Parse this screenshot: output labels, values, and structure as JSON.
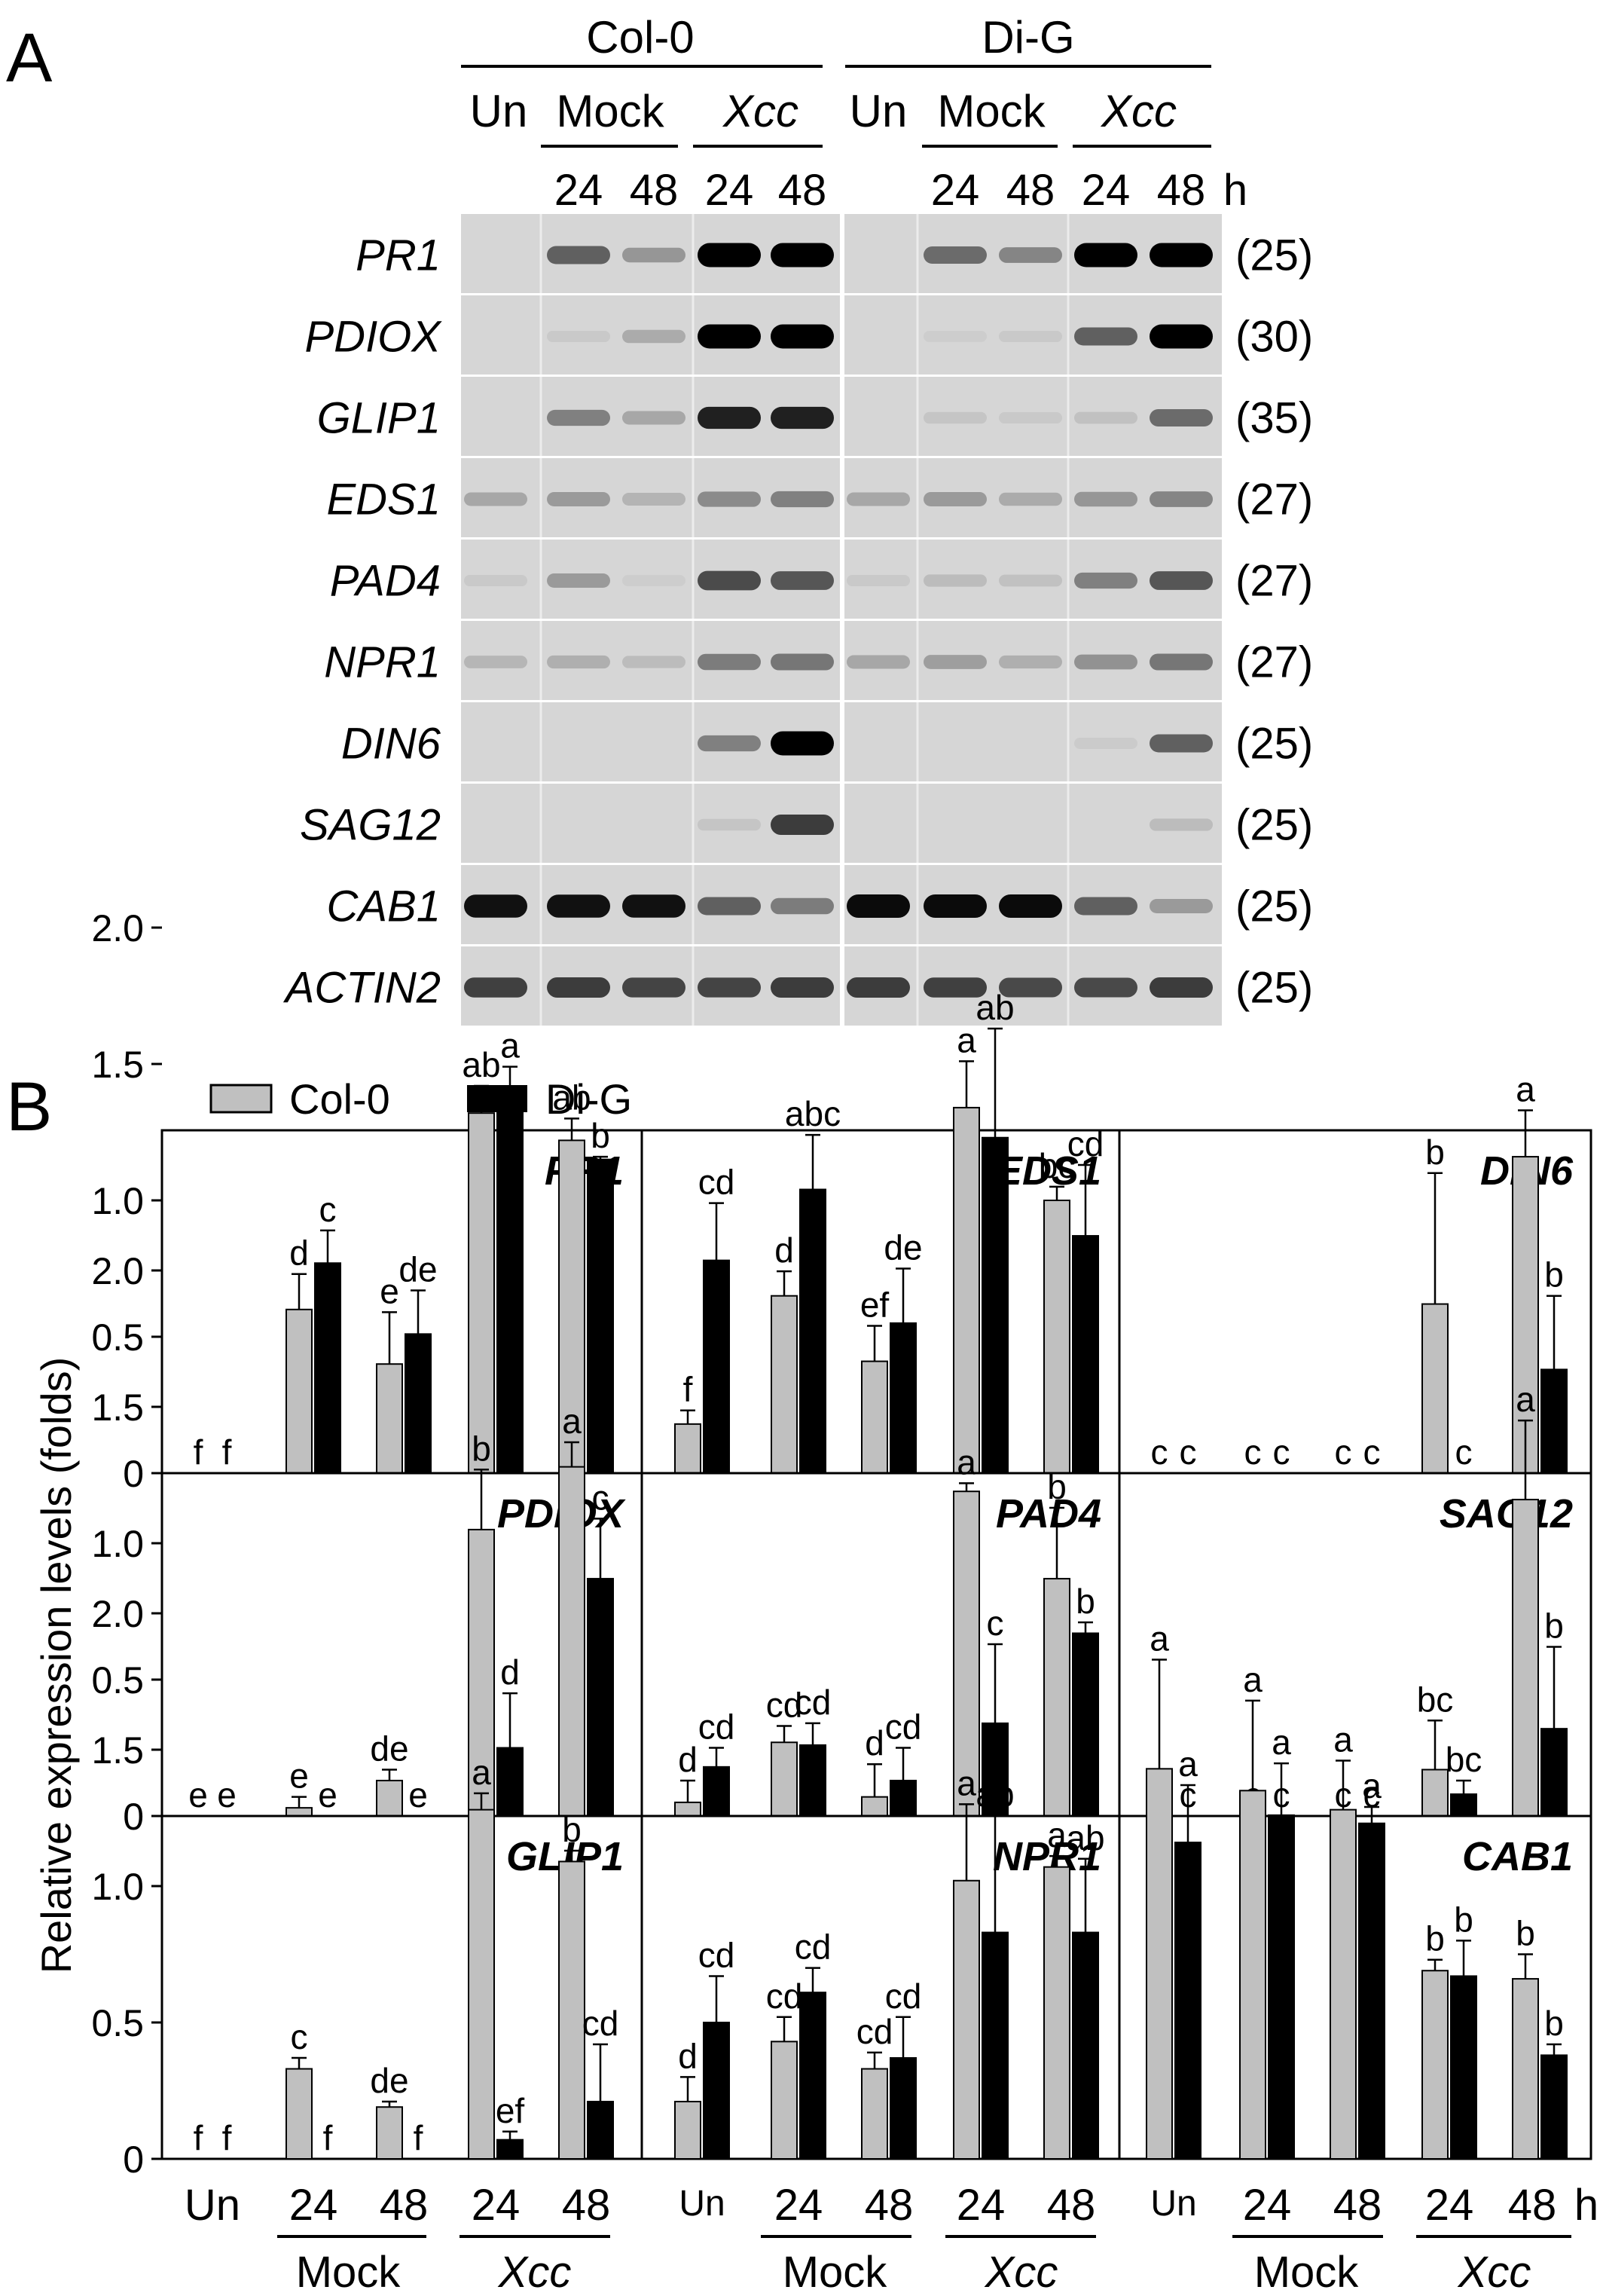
{
  "panelA": {
    "label": "A",
    "groups": [
      "Col-0",
      "Di-G"
    ],
    "treatments": [
      "Un",
      "Mock",
      "Xcc"
    ],
    "times": [
      "24",
      "48",
      "24",
      "48"
    ],
    "time_unit": "h",
    "genes": [
      {
        "name": "PR1",
        "cycles": "(25)"
      },
      {
        "name": "PDIOX",
        "cycles": "(30)"
      },
      {
        "name": "GLIP1",
        "cycles": "(35)"
      },
      {
        "name": "EDS1",
        "cycles": "(27)"
      },
      {
        "name": "PAD4",
        "cycles": "(27)"
      },
      {
        "name": "NPR1",
        "cycles": "(27)"
      },
      {
        "name": "DIN6",
        "cycles": "(25)"
      },
      {
        "name": "SAG12",
        "cycles": "(25)"
      },
      {
        "name": "CAB1",
        "cycles": "(25)"
      },
      {
        "name": "ACTIN2",
        "cycles": "(25)"
      }
    ],
    "band_intensity": [
      [
        0.0,
        0.55,
        0.3,
        1.0,
        1.0,
        0.0,
        0.5,
        0.38,
        1.0,
        1.0
      ],
      [
        0.0,
        0.06,
        0.2,
        1.0,
        1.0,
        0.0,
        0.04,
        0.06,
        0.55,
        1.0
      ],
      [
        0.0,
        0.4,
        0.22,
        0.85,
        0.85,
        0.0,
        0.08,
        0.06,
        0.1,
        0.5
      ],
      [
        0.22,
        0.28,
        0.16,
        0.35,
        0.4,
        0.22,
        0.28,
        0.2,
        0.3,
        0.38
      ],
      [
        0.06,
        0.28,
        0.04,
        0.65,
        0.6,
        0.06,
        0.12,
        0.1,
        0.4,
        0.6
      ],
      [
        0.15,
        0.18,
        0.12,
        0.42,
        0.45,
        0.22,
        0.26,
        0.18,
        0.32,
        0.45
      ],
      [
        0.0,
        0.0,
        0.0,
        0.4,
        1.0,
        0.0,
        0.0,
        0.0,
        0.05,
        0.55
      ],
      [
        0.0,
        0.0,
        0.0,
        0.08,
        0.72,
        0.0,
        0.0,
        0.0,
        0.0,
        0.12
      ],
      [
        0.92,
        0.92,
        0.92,
        0.55,
        0.42,
        0.95,
        0.95,
        0.95,
        0.55,
        0.28
      ],
      [
        0.7,
        0.72,
        0.68,
        0.68,
        0.72,
        0.72,
        0.7,
        0.66,
        0.66,
        0.72
      ]
    ]
  },
  "panelB": {
    "label": "B",
    "legend": [
      "Col-0",
      "Di-G"
    ],
    "ylabel": "Relative expression levels (folds)",
    "yticks": [
      "0",
      "0.5",
      "1.0",
      "1.5",
      "2.0"
    ],
    "xaxis": {
      "categories": [
        "Un",
        "24",
        "48",
        "24",
        "48"
      ],
      "treatments": [
        "Mock",
        "Xcc"
      ],
      "unit": "h"
    }
  },
  "chart_data": [
    {
      "type": "bar",
      "title": "PR1",
      "categories": [
        "Un",
        "Mock 24",
        "Mock 48",
        "Xcc 24",
        "Xcc 48"
      ],
      "ylim": [
        0,
        2.5
      ],
      "series": [
        {
          "name": "Col-0",
          "values": [
            0,
            0.6,
            0.4,
            1.32,
            1.22
          ],
          "errors": [
            0,
            0.13,
            0.19,
            0.1,
            0.08
          ],
          "letters": [
            "f",
            "d",
            "e",
            "ab",
            "ab"
          ]
        },
        {
          "name": "Di-G",
          "values": [
            0,
            0.77,
            0.51,
            1.38,
            1.15
          ],
          "errors": [
            0,
            0.12,
            0.16,
            0.11,
            0.01
          ],
          "letters": [
            "f",
            "c",
            "de",
            "a",
            "b"
          ]
        }
      ]
    },
    {
      "type": "bar",
      "title": "EDS1",
      "categories": [
        "Un",
        "Mock 24",
        "Mock 48",
        "Xcc 24",
        "Xcc 48"
      ],
      "ylim": [
        0,
        2.5
      ],
      "series": [
        {
          "name": "Col-0",
          "values": [
            0.18,
            0.65,
            0.41,
            1.34,
            1.0
          ],
          "errors": [
            0.05,
            0.09,
            0.13,
            0.17,
            0.05
          ],
          "letters": [
            "f",
            "d",
            "ef",
            "a",
            "bc"
          ]
        },
        {
          "name": "Di-G",
          "values": [
            0.78,
            1.04,
            0.55,
            1.23,
            0.87
          ],
          "errors": [
            0.21,
            0.2,
            0.2,
            0.4,
            0.26
          ],
          "letters": [
            "cd",
            "abc",
            "de",
            "ab",
            "cd"
          ]
        }
      ]
    },
    {
      "type": "bar",
      "title": "DIN6",
      "categories": [
        "Un",
        "Mock 24",
        "Mock 48",
        "Xcc 24",
        "Xcc 48"
      ],
      "ylim": [
        0,
        2.5
      ],
      "series": [
        {
          "name": "Col-0",
          "values": [
            0,
            0,
            0,
            0.62,
            1.16
          ],
          "errors": [
            0,
            0,
            0,
            0.48,
            0.17
          ],
          "letters": [
            "c",
            "c",
            "c",
            "b",
            "a"
          ]
        },
        {
          "name": "Di-G",
          "values": [
            0,
            0,
            0,
            0,
            0.38
          ],
          "errors": [
            0,
            0,
            0,
            0,
            0.27
          ],
          "letters": [
            "c",
            "c",
            "c",
            "c",
            "b"
          ]
        }
      ]
    },
    {
      "type": "bar",
      "title": "PDIOX",
      "categories": [
        "Un",
        "Mock 24",
        "Mock 48",
        "Xcc 24",
        "Xcc 48"
      ],
      "ylim": [
        0,
        2.5
      ],
      "series": [
        {
          "name": "Col-0",
          "values": [
            0,
            0.03,
            0.13,
            1.05,
            1.28
          ],
          "errors": [
            0,
            0.04,
            0.04,
            0.22,
            0.09
          ],
          "letters": [
            "e",
            "e",
            "de",
            "b",
            "a"
          ]
        },
        {
          "name": "Di-G",
          "values": [
            0,
            0,
            0,
            0.25,
            0.87
          ],
          "errors": [
            0,
            0,
            0,
            0.2,
            0.22
          ],
          "letters": [
            "e",
            "e",
            "e",
            "d",
            "c"
          ]
        }
      ]
    },
    {
      "type": "bar",
      "title": "PAD4",
      "categories": [
        "Un",
        "Mock 24",
        "Mock 48",
        "Xcc 24",
        "Xcc 48"
      ],
      "ylim": [
        0,
        2.5
      ],
      "series": [
        {
          "name": "Col-0",
          "values": [
            0.05,
            0.27,
            0.07,
            1.19,
            0.87
          ],
          "errors": [
            0.08,
            0.06,
            0.12,
            0.03,
            0.26
          ],
          "letters": [
            "d",
            "cd",
            "d",
            "a",
            "b"
          ]
        },
        {
          "name": "Di-G",
          "values": [
            0.18,
            0.26,
            0.13,
            0.34,
            0.67
          ],
          "errors": [
            0.07,
            0.08,
            0.12,
            0.29,
            0.04
          ],
          "letters": [
            "cd",
            "cd",
            "cd",
            "c",
            "b"
          ]
        }
      ]
    },
    {
      "type": "bar",
      "title": "SAG12",
      "categories": [
        "Un",
        "Mock 24",
        "Mock 48",
        "Xcc 24",
        "Xcc 48"
      ],
      "ylim": [
        0,
        2.5
      ],
      "series": [
        {
          "name": "Col-0",
          "values": [
            0,
            0,
            0,
            0.17,
            1.16
          ],
          "errors": [
            0,
            0,
            0,
            0.18,
            0.29
          ],
          "letters": [
            "c",
            "c",
            "c",
            "bc",
            "a"
          ]
        },
        {
          "name": "Di-G",
          "values": [
            0,
            0,
            0,
            0.08,
            0.32
          ],
          "errors": [
            0,
            0,
            0,
            0.05,
            0.3
          ],
          "letters": [
            "c",
            "c",
            "c",
            "bc",
            "b"
          ]
        }
      ]
    },
    {
      "type": "bar",
      "title": "GLIP1",
      "categories": [
        "Un",
        "Mock 24",
        "Mock 48",
        "Xcc 24",
        "Xcc 48"
      ],
      "ylim": [
        0,
        2.5
      ],
      "series": [
        {
          "name": "Col-0",
          "values": [
            0,
            0.33,
            0.19,
            1.28,
            1.09
          ],
          "errors": [
            0,
            0.04,
            0.02,
            0.06,
            0.04
          ],
          "letters": [
            "f",
            "c",
            "de",
            "a",
            "b"
          ]
        },
        {
          "name": "Di-G",
          "values": [
            0,
            0,
            0,
            0.07,
            0.21
          ],
          "errors": [
            0,
            0,
            0,
            0.03,
            0.21
          ],
          "letters": [
            "f",
            "f",
            "f",
            "ef",
            "cd"
          ]
        }
      ]
    },
    {
      "type": "bar",
      "title": "NPR1",
      "categories": [
        "Un",
        "Mock 24",
        "Mock 48",
        "Xcc 24",
        "Xcc 48"
      ],
      "ylim": [
        0,
        2.5
      ],
      "series": [
        {
          "name": "Col-0",
          "values": [
            0.21,
            0.43,
            0.33,
            1.02,
            1.07
          ],
          "errors": [
            0.09,
            0.09,
            0.06,
            0.28,
            0.04
          ],
          "letters": [
            "d",
            "cd",
            "cd",
            "a",
            "a"
          ]
        },
        {
          "name": "Di-G",
          "values": [
            0.5,
            0.61,
            0.37,
            0.83,
            0.83
          ],
          "errors": [
            0.17,
            0.09,
            0.15,
            0.43,
            0.27
          ],
          "letters": [
            "cd",
            "cd",
            "cd",
            "ab",
            "ab"
          ]
        }
      ]
    },
    {
      "type": "bar",
      "title": "CAB1",
      "categories": [
        "Un",
        "Mock 24",
        "Mock 48",
        "Xcc 24",
        "Xcc 48"
      ],
      "ylim": [
        0,
        2.5
      ],
      "series": [
        {
          "name": "Col-0",
          "values": [
            1.43,
            1.35,
            1.28,
            0.69,
            0.66
          ],
          "errors": [
            0.4,
            0.33,
            0.18,
            0.04,
            0.09
          ],
          "letters": [
            "a",
            "a",
            "a",
            "b",
            "b"
          ]
        },
        {
          "name": "Di-G",
          "values": [
            1.16,
            1.26,
            1.23,
            0.67,
            0.38
          ],
          "errors": [
            0.21,
            0.19,
            0.06,
            0.13,
            0.04
          ],
          "letters": [
            "a",
            "a",
            "a",
            "b",
            "b"
          ]
        }
      ]
    }
  ]
}
